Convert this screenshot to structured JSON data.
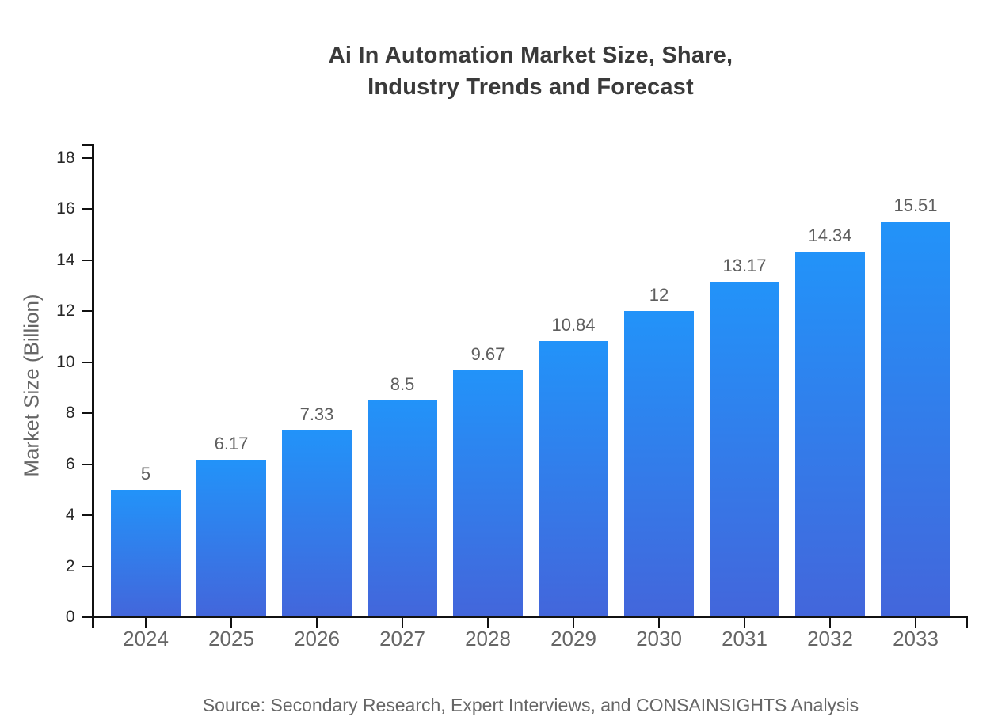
{
  "title": {
    "line1": "Ai In Automation Market Size, Share,",
    "line2": "Industry Trends and Forecast"
  },
  "source": "Source: Secondary Research, Expert Interviews, and CONSAINSIGHTS Analysis",
  "chart_data": {
    "type": "bar",
    "title": "Ai In Automation Market Size, Share, Industry Trends and Forecast",
    "categories": [
      "2024",
      "2025",
      "2026",
      "2027",
      "2028",
      "2029",
      "2030",
      "2031",
      "2032",
      "2033"
    ],
    "values": [
      5,
      6.17,
      7.33,
      8.5,
      9.67,
      10.84,
      12,
      13.17,
      14.34,
      15.51
    ],
    "value_labels": [
      "5",
      "6.17",
      "7.33",
      "8.5",
      "9.67",
      "10.84",
      "12",
      "13.17",
      "14.34",
      "15.51"
    ],
    "xlabel": "",
    "ylabel": "Market Size (Billion)",
    "ylim": [
      0,
      18
    ],
    "ytick_step": 2,
    "ytick_labels": [
      "0",
      "2",
      "4",
      "6",
      "8",
      "10",
      "12",
      "14",
      "16",
      "18"
    ],
    "grid": false,
    "legend": "none",
    "colors": {
      "bar_gradient_top": "#2293F9",
      "bar_gradient_bottom": "#4366DB",
      "axis": "#111111",
      "title_text": "#3a3a3a",
      "tick_label_text": "#262626",
      "category_label_text": "#666666",
      "value_label_text": "#5e5e5e",
      "source_text": "#666666",
      "background": "#ffffff"
    }
  }
}
